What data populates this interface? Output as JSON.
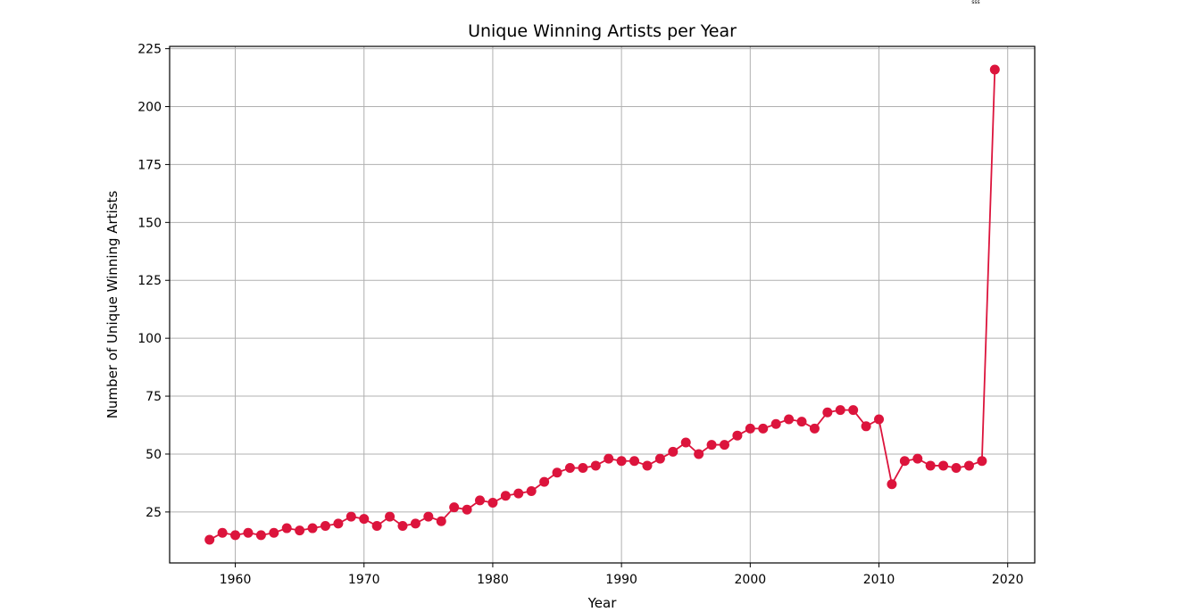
{
  "chart_data": {
    "type": "line",
    "title": "Unique Winning Artists per Year",
    "xlabel": "Year",
    "ylabel": "Number of Unique Winning Artists",
    "xlim": [
      1954.9,
      2022.1
    ],
    "ylim": [
      3,
      226
    ],
    "xticks": [
      1960,
      1970,
      1980,
      1990,
      2000,
      2010,
      2020
    ],
    "yticks": [
      25,
      50,
      75,
      100,
      125,
      150,
      175,
      200,
      225
    ],
    "grid": true,
    "line_color": "#dc143c",
    "marker": "circle",
    "x": [
      1958,
      1959,
      1960,
      1961,
      1962,
      1963,
      1964,
      1965,
      1966,
      1967,
      1968,
      1969,
      1970,
      1971,
      1972,
      1973,
      1974,
      1975,
      1976,
      1977,
      1978,
      1979,
      1980,
      1981,
      1982,
      1983,
      1984,
      1985,
      1986,
      1987,
      1988,
      1989,
      1990,
      1991,
      1992,
      1993,
      1994,
      1995,
      1996,
      1997,
      1998,
      1999,
      2000,
      2001,
      2002,
      2003,
      2004,
      2005,
      2006,
      2007,
      2008,
      2009,
      2010,
      2011,
      2012,
      2013,
      2014,
      2015,
      2016,
      2017,
      2018,
      2019
    ],
    "y": [
      13,
      16,
      15,
      16,
      15,
      16,
      18,
      17,
      18,
      19,
      20,
      23,
      22,
      19,
      23,
      19,
      20,
      23,
      21,
      27,
      26,
      30,
      29,
      32,
      33,
      34,
      38,
      42,
      44,
      44,
      45,
      48,
      47,
      47,
      45,
      48,
      51,
      55,
      50,
      54,
      54,
      58,
      61,
      61,
      63,
      65,
      64,
      61,
      68,
      69,
      69,
      62,
      65,
      37,
      47,
      48,
      45,
      45,
      44,
      45,
      47,
      216
    ]
  },
  "corner_mark": "sss"
}
